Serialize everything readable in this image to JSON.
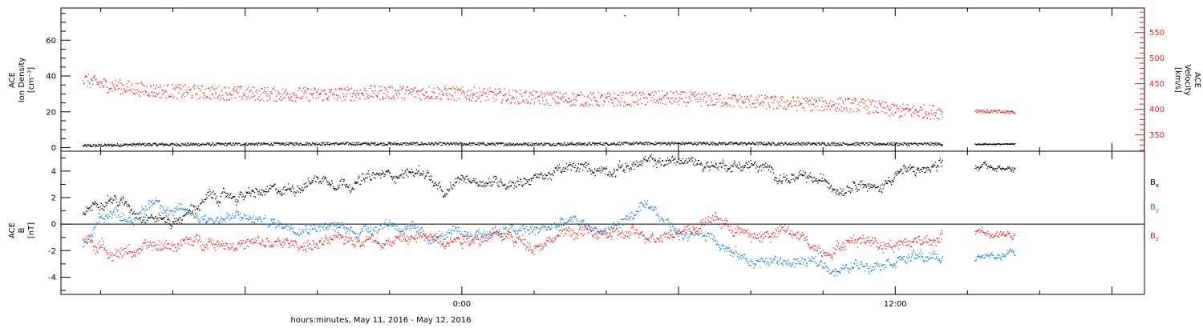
{
  "chart_data": [
    {
      "type": "scatter",
      "panel": "top",
      "ylabel_left": [
        "ACE",
        "Ion Density",
        "[cm⁻³]"
      ],
      "ylabel_right": [
        "ACE",
        "Velocity",
        "[km/s]"
      ],
      "ylim_left": [
        -2,
        78
      ],
      "left_ticks": [
        "0",
        "20",
        "40",
        "60"
      ],
      "left_tick_values": [
        0,
        20,
        40,
        60
      ],
      "ylim_right": [
        318,
        598
      ],
      "right_ticks": [
        "350",
        "400",
        "450",
        "500",
        "550"
      ],
      "right_tick_values": [
        350,
        400,
        450,
        500,
        550
      ],
      "colors": {
        "density": "#000000",
        "velocity": "#e8231c"
      },
      "series": [
        {
          "axis": "left",
          "x": [
            -10.5,
            -9,
            -8,
            -6,
            -4,
            -2,
            0,
            2,
            3.5,
            5,
            7,
            9,
            11,
            12,
            13.3
          ],
          "values": [
            1.2,
            2,
            2,
            2.2,
            2.4,
            2.4,
            2.3,
            2.2,
            2.3,
            2.6,
            2.6,
            2.4,
            2.3,
            2.3,
            2.2
          ],
          "scatter": 0.8
        },
        {
          "axis": "left",
          "x": [
            -10.5,
            -9.8,
            -8.5,
            -7,
            -5,
            -3.5,
            -2.5,
            -1,
            0.5,
            2,
            4,
            5.5,
            7,
            9,
            11,
            12,
            13.3
          ],
          "values": [
            38,
            35,
            32,
            31,
            30,
            30,
            31,
            31,
            30,
            28,
            27,
            28,
            27,
            25,
            24,
            21,
            20
          ],
          "scatter": 4
        },
        {
          "axis": "left",
          "x": [
            14.2,
            14.5,
            15.3
          ],
          "values": [
            21,
            20.5,
            20
          ],
          "scatter": 1
        },
        {
          "axis": "left",
          "x": [
            14.2,
            14.5,
            15.3
          ],
          "values": [
            2.1,
            2.2,
            2.2
          ],
          "scatter": 0.3
        }
      ],
      "outlier": {
        "x": 4.5,
        "y": 74
      }
    },
    {
      "type": "scatter",
      "panel": "bottom",
      "ylabel_left": [
        "ACE",
        "B",
        "[nT]"
      ],
      "ylim": [
        -5.3,
        5.5
      ],
      "ticks": [
        "-4",
        "-2",
        "0",
        "2",
        "4"
      ],
      "tick_values": [
        -4,
        -2,
        0,
        2,
        4
      ],
      "series": [
        {
          "name": "Bx",
          "color": "#000000",
          "x": [
            -10.5,
            -9.8,
            -9,
            -8,
            -7,
            -6,
            -5,
            -4,
            -3,
            -2,
            -1,
            -0.5,
            0,
            1,
            2,
            3,
            4,
            5,
            6,
            7,
            8,
            9,
            10,
            10.5,
            11,
            11.5,
            12,
            12.5,
            13.3
          ],
          "values": [
            1.0,
            2.2,
            1.0,
            0.2,
            2.0,
            2.2,
            2.5,
            3.5,
            3.2,
            3.8,
            4.0,
            2.0,
            3.5,
            3.2,
            3.5,
            4.2,
            4.2,
            4.6,
            4.8,
            4.5,
            4.5,
            3.5,
            3.2,
            2.8,
            3.5,
            2.5,
            4.0,
            4.0,
            4.2
          ],
          "scatter": 0.5
        },
        {
          "name": "By",
          "color": "#1a80d0",
          "x": [
            -10.5,
            -9.8,
            -9,
            -8.5,
            -8,
            -7,
            -6,
            -5,
            -4,
            -3,
            -2,
            -1,
            0,
            1,
            2,
            3,
            4,
            5,
            6,
            7,
            7.5,
            8,
            9,
            10,
            10.5,
            11,
            12,
            13.3
          ],
          "values": [
            -1.5,
            1.0,
            0.5,
            2.0,
            1.0,
            0.5,
            0.5,
            0.0,
            0.0,
            -0.5,
            0.2,
            -1.0,
            -0.8,
            -0.5,
            -0.5,
            0.2,
            -0.5,
            1.2,
            -0.5,
            -0.8,
            -2.2,
            -2.8,
            -2.8,
            -3.0,
            -3.5,
            -3.0,
            -2.5,
            -2.5
          ],
          "scatter": 0.5
        },
        {
          "name": "Bz",
          "color": "#e8231c",
          "x": [
            -10.5,
            -9.8,
            -9,
            -8,
            -7,
            -6,
            -5,
            -4,
            -3,
            -2,
            -1,
            0,
            1,
            2,
            3,
            4,
            5,
            6,
            6.5,
            7,
            8,
            9,
            10,
            11,
            12,
            13,
            13.3
          ],
          "values": [
            -1.0,
            -2.0,
            -2.0,
            -1.5,
            -1.2,
            -1.5,
            -1.5,
            -1.5,
            -1.0,
            -1.2,
            -1.0,
            -1.0,
            -0.8,
            -1.5,
            -0.5,
            -0.8,
            -0.8,
            -0.5,
            -0.2,
            0.5,
            -1.0,
            -0.5,
            -2.0,
            -1.0,
            -1.5,
            -1.0,
            -0.8
          ],
          "scatter": 0.6
        },
        {
          "name": "Bx",
          "color": "#000000",
          "x": [
            14.2,
            15.3
          ],
          "values": [
            4.3,
            4.2
          ],
          "scatter": 0.2
        },
        {
          "name": "By",
          "color": "#1a80d0",
          "x": [
            14.2,
            15.3
          ],
          "values": [
            -2.5,
            -2.3
          ],
          "scatter": 0.2
        },
        {
          "name": "Bz",
          "color": "#e8231c",
          "x": [
            14.2,
            15.3
          ],
          "values": [
            -0.5,
            -0.8
          ],
          "scatter": 0.3
        }
      ],
      "legend": [
        {
          "base": "B",
          "sub": "x",
          "color": "#000000"
        },
        {
          "base": "B",
          "sub": "y",
          "color": "#1a80d0"
        },
        {
          "base": "B",
          "sub": "z",
          "color": "#e8231c"
        }
      ],
      "legend_placement": "right"
    }
  ],
  "x_axis": {
    "xlim": [
      -11.1,
      18.9
    ],
    "tick_labels": [
      "0:00",
      "12:00"
    ],
    "tick_label_values": [
      0,
      12
    ],
    "minor_every_hours": 2,
    "xlabel": "hours:minutes, May 11, 2016 - May 12, 2016"
  }
}
